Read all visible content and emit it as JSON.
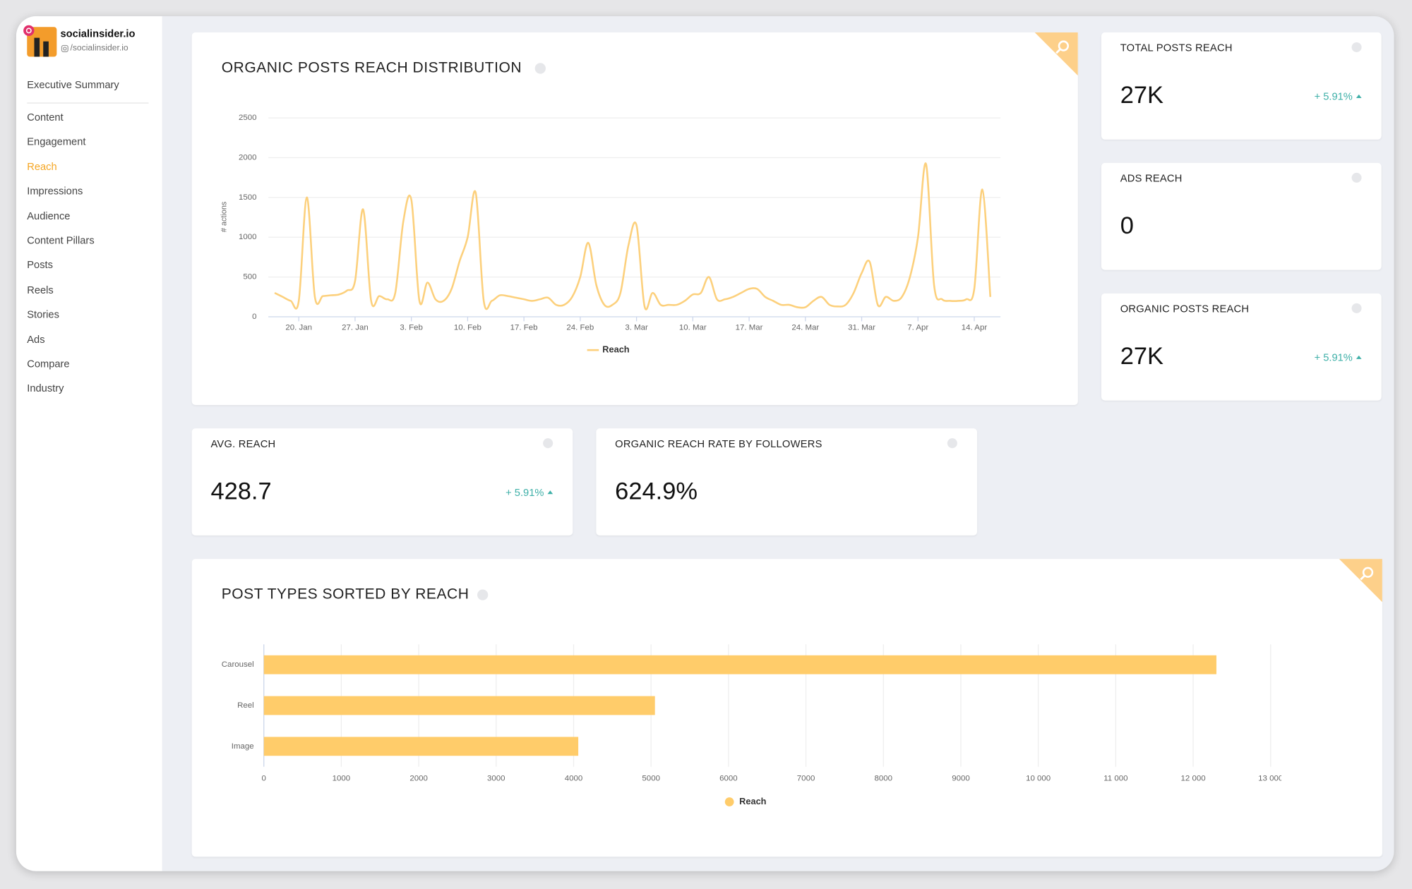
{
  "sidebar": {
    "brand": "socialinsider.io",
    "handle": "/socialinsider.io",
    "menu": [
      "Executive Summary",
      "Content",
      "Engagement",
      "Reach",
      "Impressions",
      "Audience",
      "Content Pillars",
      "Posts",
      "Reels",
      "Stories",
      "Ads",
      "Compare",
      "Industry"
    ],
    "active": 3,
    "active_color": "#f5a623"
  },
  "cards": [
    {
      "label": "TOTAL POSTS REACH",
      "value": "27K",
      "change": "+ 5.91%"
    },
    {
      "label": "ADS REACH",
      "value": "0"
    },
    {
      "label": "ORGANIC POSTS REACH",
      "value": "27K",
      "change": "+ 5.91%"
    },
    {
      "label": "AVG. REACH",
      "value": "428.7",
      "change": "+ 5.91%"
    },
    {
      "label": "ORGANIC REACH RATE BY FOLLOWERS",
      "value": "624.9%"
    }
  ],
  "chart_data": [
    {
      "type": "line",
      "title": "ORGANIC POSTS REACH DISTRIBUTION",
      "y_label": "# actions",
      "categories": [
        null,
        null,
        null,
        "20. Jan",
        null,
        null,
        null,
        null,
        null,
        null,
        "27. Jan",
        null,
        null,
        null,
        null,
        null,
        null,
        "3. Feb",
        null,
        null,
        null,
        null,
        null,
        null,
        "10. Feb",
        null,
        null,
        null,
        null,
        null,
        null,
        "17. Feb",
        null,
        null,
        null,
        null,
        null,
        null,
        "24. Feb",
        null,
        null,
        null,
        null,
        null,
        null,
        "3. Mar",
        null,
        null,
        null,
        null,
        null,
        null,
        "10. Mar",
        null,
        null,
        null,
        null,
        null,
        null,
        "17. Mar",
        null,
        null,
        null,
        null,
        null,
        null,
        "24. Mar",
        null,
        null,
        null,
        null,
        null,
        null,
        "31. Mar",
        null,
        null,
        null,
        null,
        null,
        null,
        "7. Apr",
        null,
        null,
        null,
        null,
        null,
        null,
        "14. Apr",
        null,
        null
      ],
      "series": [
        {
          "name": "Reach",
          "color": "#fcd07c",
          "values": [
            300,
            250,
            200,
            200,
            1500,
            250,
            260,
            270,
            280,
            330,
            450,
            1350,
            200,
            260,
            220,
            300,
            1200,
            1470,
            200,
            430,
            220,
            200,
            350,
            700,
            1000,
            1560,
            200,
            200,
            270,
            260,
            240,
            220,
            200,
            220,
            240,
            150,
            150,
            250,
            500,
            930,
            400,
            150,
            150,
            300,
            900,
            1150,
            130,
            300,
            150,
            150,
            150,
            200,
            280,
            300,
            500,
            220,
            220,
            250,
            300,
            350,
            350,
            250,
            200,
            150,
            150,
            120,
            120,
            200,
            250,
            150,
            130,
            150,
            300,
            550,
            690,
            150,
            250,
            200,
            250,
            500,
            1000,
            1920,
            400,
            220,
            200,
            200,
            220,
            350,
            1600,
            250
          ]
        }
      ],
      "ylim": [
        0,
        2500
      ],
      "yticks": [
        0,
        500,
        1000,
        1500,
        2000,
        2500
      ],
      "grid": true
    },
    {
      "type": "bar",
      "orientation": "horizontal",
      "title": "POST TYPES SORTED BY REACH",
      "categories": [
        "Carousel",
        "Reel",
        "Image"
      ],
      "series": [
        {
          "name": "Reach",
          "color": "#ffcc6a",
          "values": [
            12300,
            5050,
            4060
          ]
        }
      ],
      "xlim": [
        0,
        13000
      ],
      "xticks": [
        0,
        1000,
        2000,
        3000,
        4000,
        5000,
        6000,
        7000,
        8000,
        9000,
        {
          "value": 10000,
          "label": "10 000"
        },
        {
          "value": 11000,
          "label": "11 000"
        },
        {
          "value": 12000,
          "label": "12 000"
        },
        {
          "value": 13000,
          "label": "13 000"
        }
      ],
      "grid": true
    }
  ]
}
